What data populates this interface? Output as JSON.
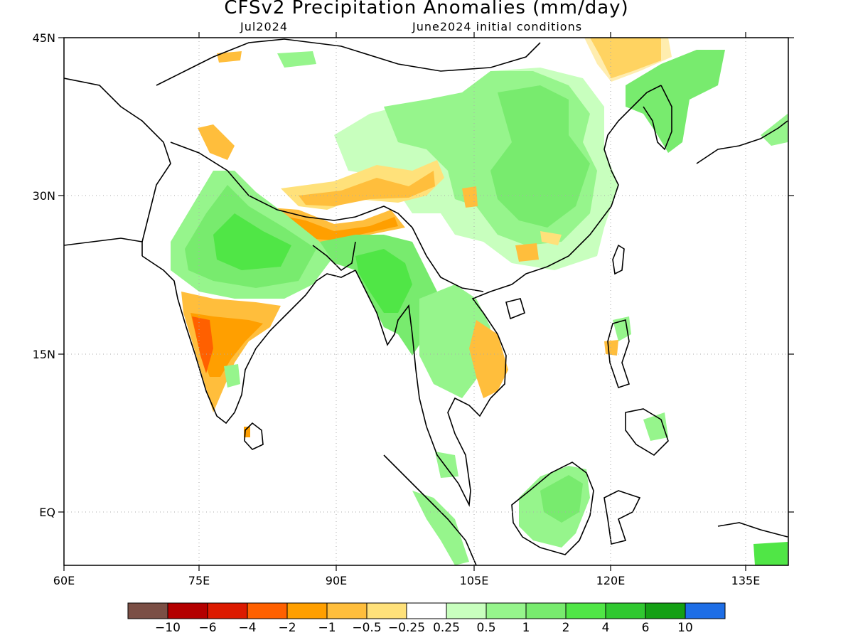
{
  "title": "CFSv2 Precipitation Anomalies (mm/day)",
  "subtitle_left": "Jul2024",
  "subtitle_right": "June2024 initial conditions",
  "lat_ticks": [
    "45N",
    "30N",
    "15N",
    "EQ"
  ],
  "lon_ticks": [
    "60E",
    "75E",
    "90E",
    "105E",
    "120E",
    "135E"
  ],
  "colorbar": {
    "colors": [
      "#7b4f45",
      "#b40000",
      "#dc1a00",
      "#ff6000",
      "#ff9f00",
      "#ffbe3c",
      "#ffe17a",
      "#ffffff",
      "#c8ffbe",
      "#96f58c",
      "#78eb6e",
      "#50e646",
      "#30c830",
      "#14a014",
      "#1e6ee6"
    ],
    "labels": [
      "−10",
      "−6",
      "−4",
      "−2",
      "−1",
      "−0.5",
      "−0.25",
      "0.25",
      "0.5",
      "1",
      "2",
      "4",
      "6",
      "10"
    ]
  }
}
